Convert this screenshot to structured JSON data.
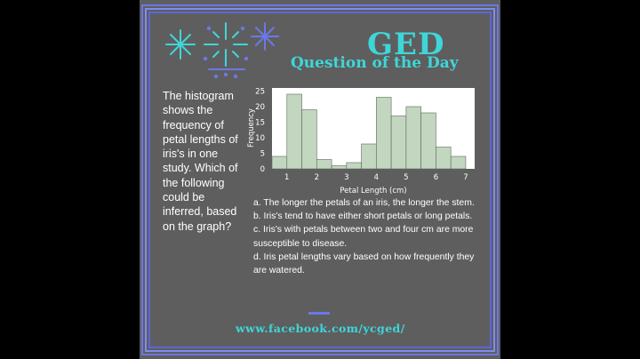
{
  "header": {
    "title": "GED",
    "subtitle": "Question of the Day"
  },
  "question": {
    "text": "The histogram shows the frequency of petal lengths of iris's in one study. Which of the following could be inferred, based on the graph?"
  },
  "chart_data": {
    "type": "bar",
    "categories": [
      "0.75",
      "1.25",
      "1.75",
      "2.25",
      "2.75",
      "3.25",
      "3.75",
      "4.25",
      "4.75",
      "5.25",
      "5.75",
      "6.25",
      "6.75"
    ],
    "values": [
      4,
      24,
      19,
      3,
      1,
      2,
      8,
      23,
      17,
      20,
      18,
      7,
      4
    ],
    "bin_edges": [
      0.5,
      1.0,
      1.5,
      2.0,
      2.5,
      3.0,
      3.5,
      4.0,
      4.5,
      5.0,
      5.5,
      6.0,
      6.5,
      7.0
    ],
    "xlabel": "Petal Length (cm)",
    "ylabel": "Frequency",
    "xticks": [
      "1",
      "2",
      "3",
      "4",
      "5",
      "6",
      "7"
    ],
    "yticks": [
      "0",
      "5",
      "10",
      "15",
      "20",
      "25"
    ],
    "xlim": [
      0.5,
      7.3
    ],
    "ylim": [
      0,
      26
    ],
    "colors": {
      "bar_fill": "#c3d6bf",
      "bar_stroke": "#5a6b5a"
    }
  },
  "answers": [
    "a. The longer the petals of an iris, the longer the stem.",
    "b. Iris's tend to have either short petals or long petals.",
    "c. Iris's with petals between two and four cm are more susceptible to disease.",
    "d. Iris petal lengths vary based on how frequently they are watered."
  ],
  "footer": {
    "url": "www.facebook.com/ycged/"
  },
  "colors": {
    "accent": "#3fd6d9",
    "frame": "#6b78e8",
    "background": "#5e5e5e"
  },
  "icons": [
    "sparkle-icon",
    "firework-icon",
    "star-burst-icon"
  ]
}
